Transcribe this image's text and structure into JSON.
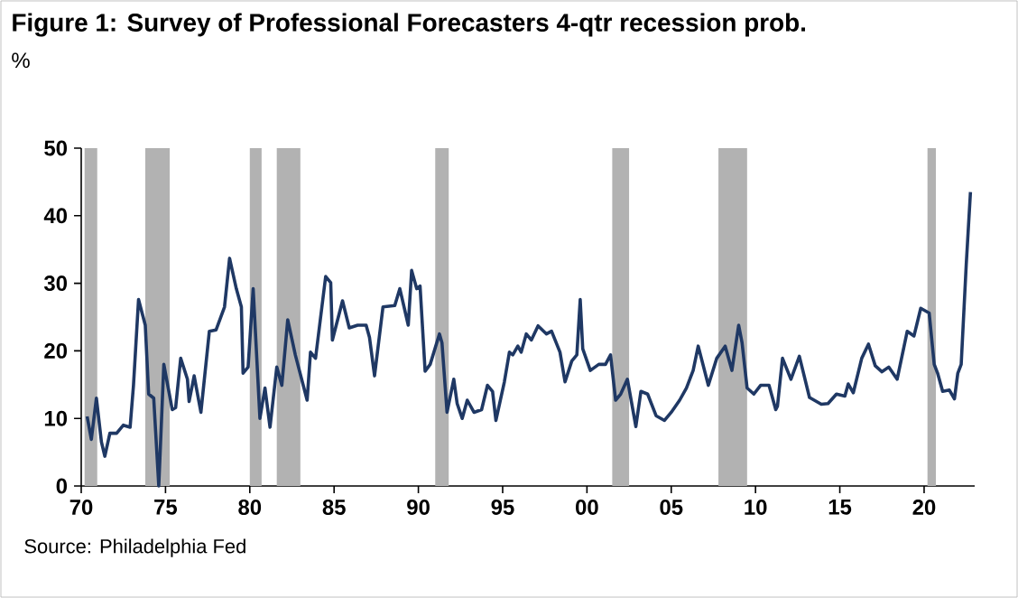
{
  "chart_data": {
    "type": "line",
    "title": "Figure 1: Survey of Professional Forecasters 4-qtr recession prob.",
    "ylabel": "%",
    "annotations": [
      "Source: Philadelphia Fed"
    ],
    "xlim": [
      1970,
      2023
    ],
    "ylim": [
      0,
      50
    ],
    "xticks": [
      {
        "value": 1970,
        "label": "70"
      },
      {
        "value": 1975,
        "label": "75"
      },
      {
        "value": 1980,
        "label": "80"
      },
      {
        "value": 1985,
        "label": "85"
      },
      {
        "value": 1990,
        "label": "90"
      },
      {
        "value": 1995,
        "label": "95"
      },
      {
        "value": 2000,
        "label": "00"
      },
      {
        "value": 2005,
        "label": "05"
      },
      {
        "value": 2010,
        "label": "10"
      },
      {
        "value": 2015,
        "label": "15"
      },
      {
        "value": 2020,
        "label": "20"
      }
    ],
    "yticks": [
      0,
      10,
      20,
      30,
      40,
      50
    ],
    "bands": [
      {
        "axis": "x",
        "from": 1970.2,
        "to": 1970.95,
        "color": "#b2b2b2"
      },
      {
        "axis": "x",
        "from": 1973.8,
        "to": 1975.25,
        "color": "#b2b2b2"
      },
      {
        "axis": "x",
        "from": 1980.0,
        "to": 1980.7,
        "color": "#b2b2b2"
      },
      {
        "axis": "x",
        "from": 1981.6,
        "to": 1983.0,
        "color": "#b2b2b2"
      },
      {
        "axis": "x",
        "from": 1991.0,
        "to": 1991.8,
        "color": "#b2b2b2"
      },
      {
        "axis": "x",
        "from": 2001.5,
        "to": 2002.5,
        "color": "#b2b2b2"
      },
      {
        "axis": "x",
        "from": 2007.8,
        "to": 2009.5,
        "color": "#b2b2b2"
      },
      {
        "axis": "x",
        "from": 2020.2,
        "to": 2020.7,
        "color": "#b2b2b2"
      }
    ],
    "series": [
      {
        "color": "#1f3864",
        "x": [
          1970.35,
          1970.6,
          1970.9,
          1971.2,
          1971.4,
          1971.7,
          1972.1,
          1972.5,
          1972.9,
          1973.1,
          1973.4,
          1973.8,
          1974.0,
          1974.3,
          1974.6,
          1974.9,
          1975.4,
          1975.6,
          1975.9,
          1976.3,
          1976.4,
          1976.7,
          1977.1,
          1977.6,
          1978.0,
          1978.5,
          1978.8,
          1979.2,
          1979.5,
          1979.6,
          1979.9,
          1980.2,
          1980.6,
          1980.9,
          1981.2,
          1981.6,
          1981.9,
          1982.25,
          1982.7,
          1983.4,
          1983.6,
          1983.9,
          1984.5,
          1984.8,
          1984.9,
          1985.5,
          1985.9,
          1986.4,
          1986.9,
          1987.1,
          1987.4,
          1987.9,
          1988.6,
          1988.9,
          1989.4,
          1989.6,
          1989.9,
          1990.1,
          1990.4,
          1990.7,
          1991.25,
          1991.4,
          1991.7,
          1992.1,
          1992.3,
          1992.6,
          1992.9,
          1993.3,
          1993.75,
          1994.1,
          1994.4,
          1994.6,
          1995.1,
          1995.4,
          1995.6,
          1995.9,
          1996.1,
          1996.4,
          1996.7,
          1997.1,
          1997.6,
          1997.9,
          1998.4,
          1998.7,
          1999.1,
          1999.4,
          1999.6,
          1999.75,
          2000.2,
          2000.7,
          2001.1,
          2001.4,
          2001.7,
          2002.0,
          2002.4,
          2002.9,
          2003.2,
          2003.6,
          2004.1,
          2004.6,
          2005.0,
          2005.5,
          2005.9,
          2006.3,
          2006.6,
          2007.2,
          2007.7,
          2008.2,
          2008.6,
          2009.0,
          2009.2,
          2009.5,
          2009.9,
          2010.3,
          2010.8,
          2011.2,
          2011.3,
          2011.6,
          2012.1,
          2012.6,
          2013.2,
          2013.9,
          2014.3,
          2014.8,
          2015.3,
          2015.5,
          2015.8,
          2016.3,
          2016.7,
          2017.1,
          2017.5,
          2017.9,
          2018.4,
          2019.0,
          2019.4,
          2019.8,
          2020.3,
          2020.6,
          2020.8,
          2021.1,
          2021.5,
          2021.8,
          2022.0,
          2022.2,
          2022.5,
          2022.75
        ],
        "values": [
          10.3,
          6.9,
          13,
          6.5,
          4.4,
          7.8,
          7.8,
          9,
          8.7,
          14.9,
          27.6,
          23.8,
          13.6,
          13,
          0,
          18,
          11.3,
          11.6,
          18.9,
          15.8,
          12.5,
          16.3,
          10.9,
          22.9,
          23.1,
          26.5,
          33.7,
          29.2,
          26.5,
          16.7,
          17.6,
          29.2,
          10,
          14.5,
          8.7,
          17.6,
          14.9,
          24.6,
          19.4,
          12.7,
          19.8,
          18.9,
          31,
          30.1,
          21.6,
          27.4,
          23.4,
          23.8,
          23.8,
          22,
          16.3,
          26.5,
          26.7,
          29.2,
          23.8,
          31.9,
          29.2,
          29.6,
          17,
          18,
          22.5,
          21.2,
          10.9,
          15.8,
          12.2,
          10,
          12.7,
          10.9,
          11.3,
          14.9,
          14,
          9.7,
          15.4,
          19.8,
          19.4,
          20.7,
          19.8,
          22.5,
          21.6,
          23.7,
          22.5,
          22.9,
          19.8,
          15.4,
          18.5,
          19.4,
          27.6,
          20.3,
          17.1,
          18,
          18,
          19.4,
          12.7,
          13.6,
          15.8,
          8.8,
          14,
          13.6,
          10.4,
          9.7,
          10.9,
          12.7,
          14.5,
          17.1,
          20.7,
          14.9,
          18.9,
          20.7,
          17.1,
          23.8,
          21.2,
          14.5,
          13.6,
          14.9,
          14.9,
          11.3,
          11.8,
          18.9,
          15.8,
          19.2,
          13.1,
          12.1,
          12.2,
          13.6,
          13.3,
          15.1,
          13.8,
          18.9,
          21,
          17.8,
          16.9,
          17.6,
          15.8,
          22.9,
          22.2,
          26.3,
          25.6,
          18,
          16.7,
          14,
          14.2,
          12.9,
          16.7,
          18,
          32.8,
          43.5
        ]
      }
    ]
  }
}
